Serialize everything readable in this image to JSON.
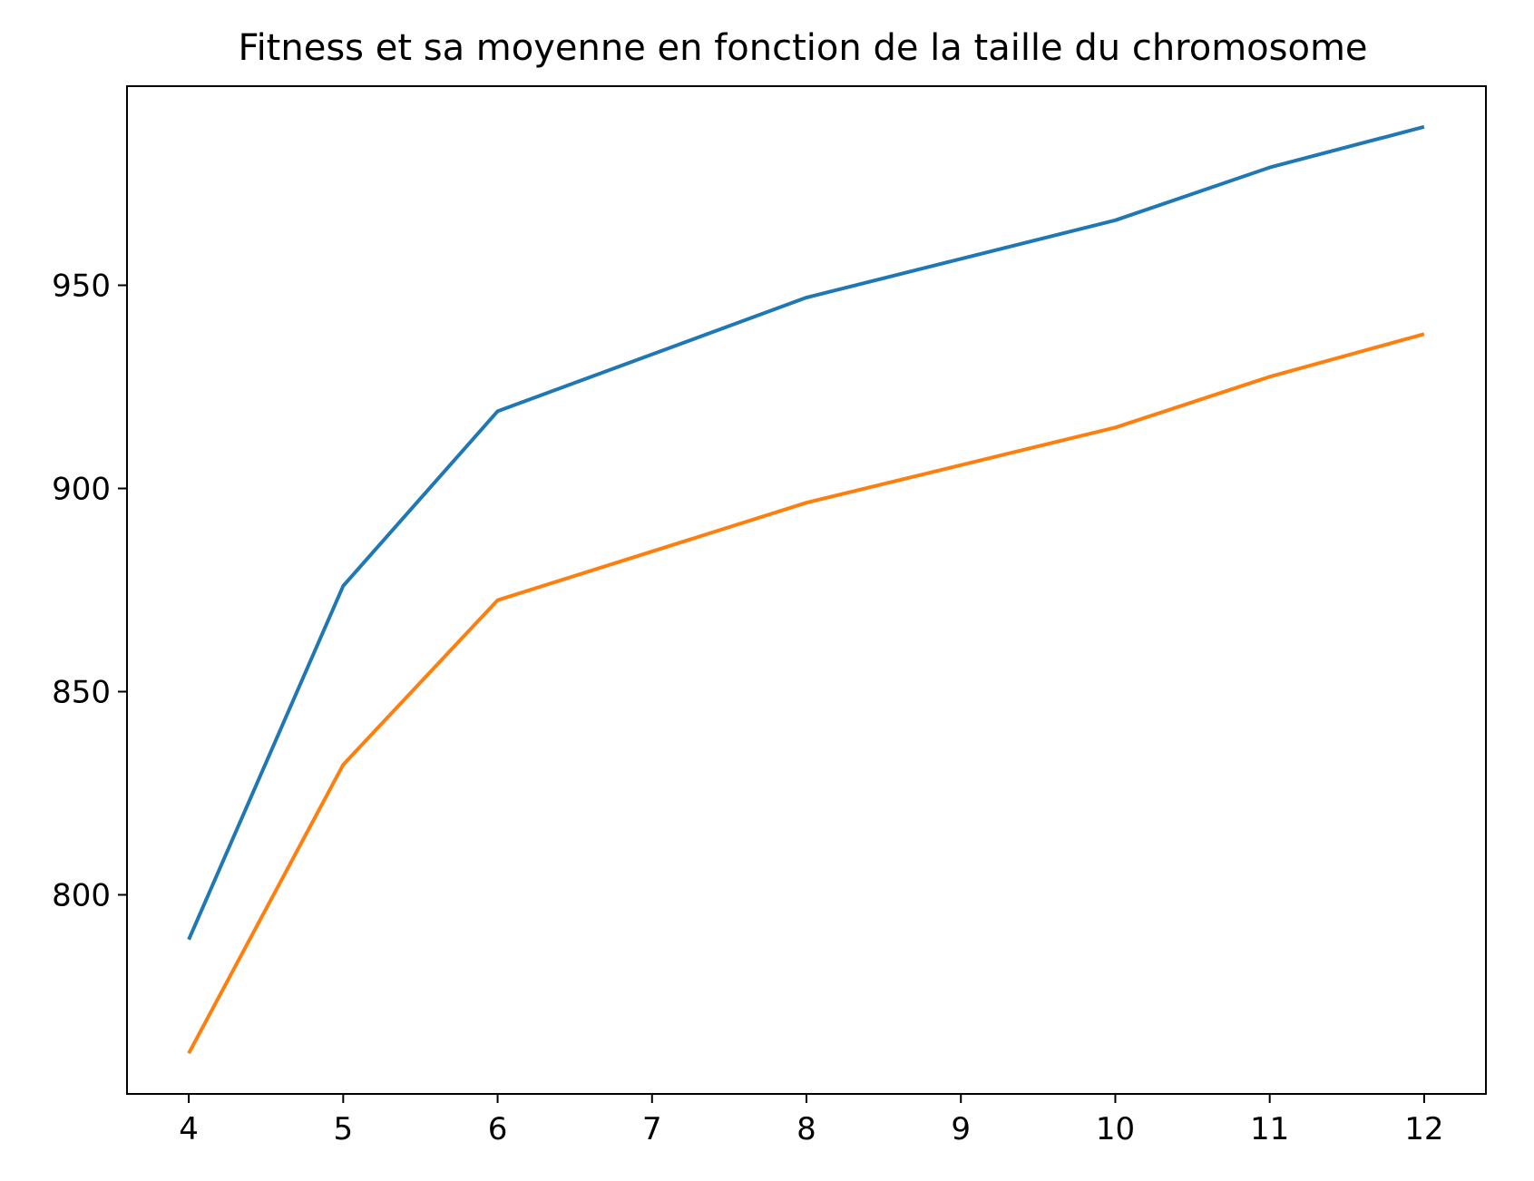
{
  "chart_data": {
    "type": "line",
    "title": "Fitness et sa moyenne en fonction de la taille du chromosome",
    "xlabel": "",
    "ylabel": "",
    "x": [
      4,
      5,
      6,
      8,
      10,
      11,
      12
    ],
    "xticks": [
      4,
      5,
      6,
      7,
      8,
      9,
      10,
      11,
      12
    ],
    "yticks": [
      800,
      850,
      900,
      950
    ],
    "xlim": [
      3.6,
      12.4
    ],
    "ylim": [
      751,
      999
    ],
    "grid": false,
    "series": [
      {
        "color": "#1f77b4",
        "values": [
          789,
          876,
          919,
          947,
          966,
          979,
          989
        ]
      },
      {
        "color": "#ff7f0e",
        "values": [
          761,
          832,
          872.5,
          896.5,
          915,
          927.5,
          938
        ]
      }
    ]
  }
}
